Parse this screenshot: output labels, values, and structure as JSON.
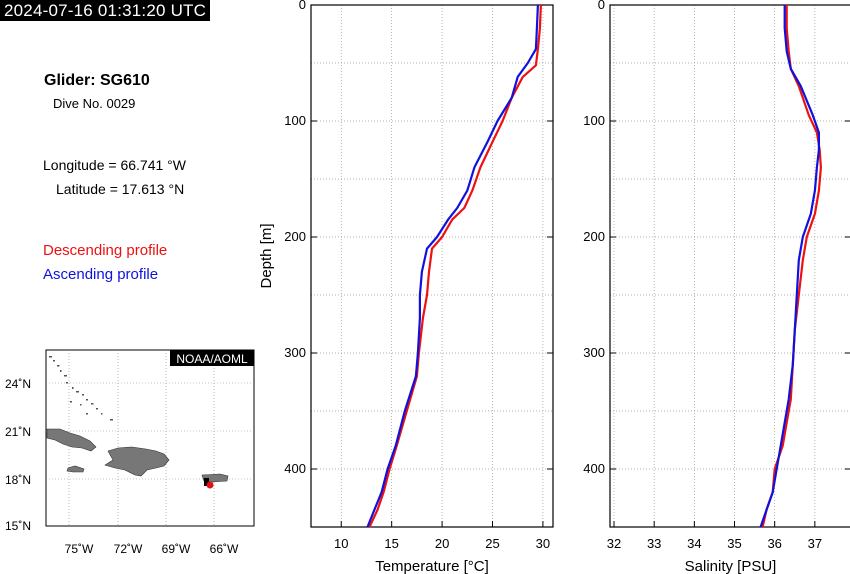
{
  "header": {
    "timestamp": "2024-07-16 01:31:20 UTC",
    "glider": "Glider: SG610",
    "dive": "Dive No. 0029",
    "longitude": "Longitude = 66.741 °W",
    "latitude": "Latitude = 17.613 °N"
  },
  "legend": {
    "descending": "Descending profile",
    "ascending": "Ascending profile"
  },
  "colors": {
    "descending": "#ee1111",
    "ascending": "#1111dd",
    "land": "#777777"
  },
  "map": {
    "badge": "NOAA/AOML",
    "lat_ticks": [
      "24˚N",
      "21˚N",
      "18˚N",
      "15˚N"
    ],
    "lon_ticks": [
      "75˚W",
      "72˚W",
      "69˚W",
      "66˚W"
    ],
    "position": {
      "lon": -66.741,
      "lat": 17.613
    }
  },
  "chart_data": [
    {
      "type": "line",
      "xlabel": "Temperature [°C]",
      "ylabel": "Depth [m]",
      "xlim": [
        7,
        31
      ],
      "ylim": [
        450,
        0
      ],
      "x_ticks": [
        "10",
        "15",
        "20",
        "25",
        "30"
      ],
      "y_ticks": [
        "0",
        "100",
        "200",
        "300",
        "400"
      ],
      "grid": true,
      "series": [
        {
          "name": "Descending profile",
          "x": [
            29.8,
            29.7,
            29.5,
            29.3,
            28.0,
            26.9,
            26.0,
            25.0,
            23.8,
            23.0,
            22.2,
            21.0,
            20.0,
            19.0,
            18.7,
            18.5,
            18.1,
            17.7,
            17.5,
            16.5,
            15.5,
            14.8,
            14.2,
            13.6,
            12.8
          ],
          "y": [
            0,
            20,
            38,
            52,
            62,
            80,
            100,
            118,
            140,
            160,
            175,
            185,
            200,
            210,
            230,
            250,
            270,
            300,
            320,
            350,
            380,
            400,
            420,
            435,
            450
          ]
        },
        {
          "name": "Ascending profile",
          "x": [
            29.5,
            29.4,
            29.3,
            28.5,
            27.5,
            26.9,
            25.5,
            24.5,
            23.2,
            22.5,
            21.5,
            20.6,
            19.5,
            18.5,
            18.0,
            17.8,
            17.8,
            17.6,
            17.4,
            16.3,
            15.4,
            14.6,
            14.0,
            13.3,
            12.6
          ],
          "y": [
            0,
            20,
            38,
            50,
            62,
            80,
            100,
            118,
            140,
            160,
            175,
            185,
            200,
            210,
            230,
            250,
            270,
            300,
            320,
            350,
            380,
            400,
            420,
            435,
            450
          ]
        }
      ]
    },
    {
      "type": "line",
      "xlabel": "Salinity [PSU]",
      "ylabel": "",
      "xlim": [
        31.9,
        37.9
      ],
      "ylim": [
        450,
        0
      ],
      "x_ticks": [
        "32",
        "33",
        "34",
        "35",
        "36",
        "37"
      ],
      "y_ticks": [
        "0",
        "100",
        "200",
        "300",
        "400"
      ],
      "grid": true,
      "series": [
        {
          "name": "Descending profile",
          "x": [
            36.3,
            36.3,
            36.35,
            36.4,
            36.6,
            36.85,
            37.05,
            37.12,
            37.15,
            37.1,
            37.0,
            36.8,
            36.7,
            36.6,
            36.5,
            36.45,
            36.4,
            36.3,
            36.2,
            36.0,
            35.95,
            35.8,
            35.7
          ],
          "y": [
            0,
            20,
            40,
            55,
            70,
            95,
            110,
            125,
            140,
            160,
            180,
            200,
            220,
            250,
            280,
            310,
            340,
            360,
            380,
            400,
            420,
            435,
            450
          ]
        },
        {
          "name": "Ascending profile",
          "x": [
            36.25,
            36.25,
            36.3,
            36.4,
            36.65,
            36.95,
            37.1,
            37.1,
            37.05,
            37.0,
            36.9,
            36.7,
            36.6,
            36.55,
            36.5,
            36.45,
            36.35,
            36.25,
            36.15,
            36.05,
            35.95,
            35.8,
            35.65
          ],
          "y": [
            0,
            20,
            40,
            55,
            70,
            95,
            110,
            125,
            140,
            160,
            180,
            200,
            220,
            250,
            280,
            310,
            340,
            360,
            380,
            400,
            420,
            435,
            450
          ]
        }
      ]
    }
  ]
}
